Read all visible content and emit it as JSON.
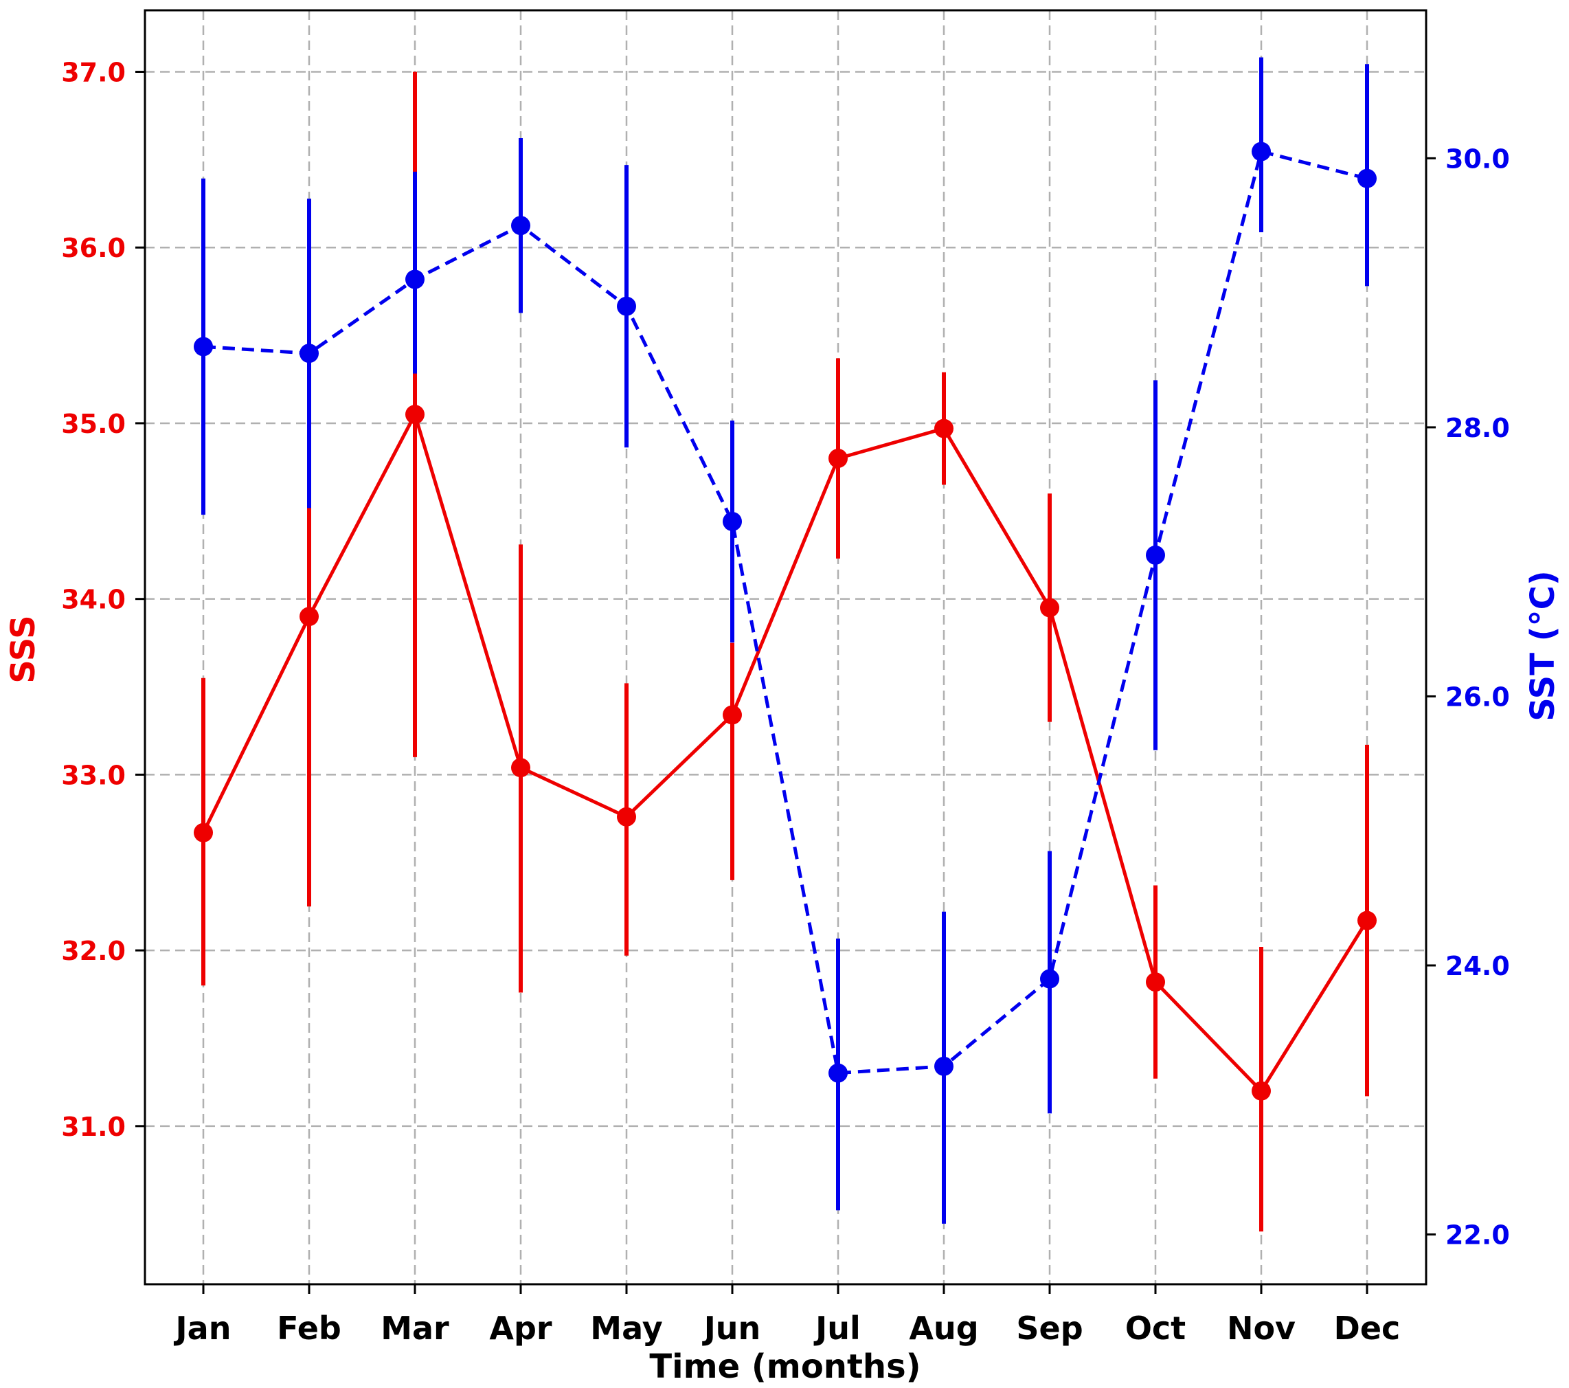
{
  "chart_data": {
    "type": "line",
    "xlabel": "Time (months)",
    "categories": [
      "Jan",
      "Feb",
      "Mar",
      "Apr",
      "May",
      "Jun",
      "Jul",
      "Aug",
      "Sep",
      "Oct",
      "Nov",
      "Dec"
    ],
    "grid": true,
    "colors": {
      "sss": "#ee0000",
      "sst": "#0000ee",
      "grid": "#b0b0b0",
      "axis": "#000000"
    },
    "left_axis": {
      "label": "SSS",
      "ylim": [
        30.1,
        37.35
      ],
      "ticks": [
        31.0,
        32.0,
        33.0,
        34.0,
        35.0,
        36.0,
        37.0
      ],
      "tick_labels": [
        "31.0",
        "32.0",
        "33.0",
        "34.0",
        "35.0",
        "36.0",
        "37.0"
      ]
    },
    "right_axis": {
      "label": "SST (°C)",
      "ylim": [
        21.63,
        31.1
      ],
      "ticks": [
        22.0,
        24.0,
        26.0,
        28.0,
        30.0
      ],
      "tick_labels": [
        "22.0",
        "24.0",
        "26.0",
        "28.0",
        "30.0"
      ]
    },
    "series": [
      {
        "axis": "left",
        "line_style": "solid",
        "values": [
          32.67,
          33.9,
          35.05,
          33.04,
          32.76,
          33.34,
          34.8,
          34.97,
          33.95,
          31.82,
          31.2,
          32.17
        ],
        "err_low": [
          31.8,
          32.25,
          33.1,
          31.76,
          31.97,
          32.4,
          34.23,
          34.65,
          33.3,
          31.27,
          30.4,
          31.17
        ],
        "err_high": [
          33.55,
          34.55,
          37.0,
          34.31,
          33.52,
          33.75,
          35.37,
          35.29,
          34.6,
          32.37,
          32.02,
          33.17
        ]
      },
      {
        "axis": "right",
        "line_style": "dashed",
        "values": [
          28.6,
          28.55,
          29.1,
          29.5,
          28.9,
          27.3,
          23.2,
          23.25,
          23.9,
          27.05,
          30.05,
          29.85
        ],
        "err_low": [
          27.35,
          27.4,
          28.4,
          28.85,
          27.85,
          26.4,
          22.18,
          22.08,
          22.9,
          25.6,
          29.45,
          29.05
        ],
        "err_high": [
          29.85,
          29.7,
          29.9,
          30.15,
          29.95,
          28.05,
          24.2,
          24.4,
          24.85,
          28.35,
          30.75,
          30.7
        ]
      }
    ]
  }
}
